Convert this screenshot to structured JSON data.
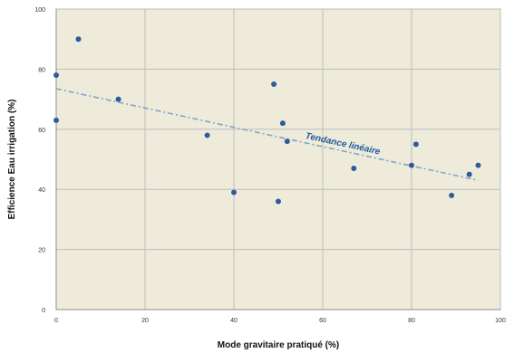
{
  "chart_data": {
    "type": "scatter",
    "title": "",
    "xlabel": "Mode gravitaire pratiqué (%)",
    "ylabel": "Efficience Eau irrigation (%)",
    "xlim": [
      0,
      100
    ],
    "ylim": [
      0,
      100
    ],
    "x_ticks": [
      "0",
      "20",
      "40",
      "60",
      "80",
      "100"
    ],
    "y_ticks": [
      "0",
      "20",
      "40",
      "60",
      "80",
      "100"
    ],
    "grid": true,
    "series": [
      {
        "name": "",
        "x": [
          0,
          0,
          5,
          14,
          34,
          40,
          49,
          50,
          51,
          52,
          67,
          80,
          81,
          89,
          93,
          95
        ],
        "y": [
          78,
          63,
          90,
          70,
          58,
          39,
          75,
          36,
          62,
          56,
          47,
          48,
          55,
          38,
          45,
          48
        ]
      }
    ],
    "trendline": {
      "label": "Tendance linéaire",
      "x": [
        0,
        95
      ],
      "y": [
        73.5,
        43
      ]
    },
    "colors": {
      "plot_background": "#EEEBDB",
      "grid": "#BDBDBD",
      "axis": "#8C8C8C",
      "points": "#2E5C9A",
      "trendline": "#7FA5C8",
      "trend_label": "#1F5B9E"
    }
  }
}
